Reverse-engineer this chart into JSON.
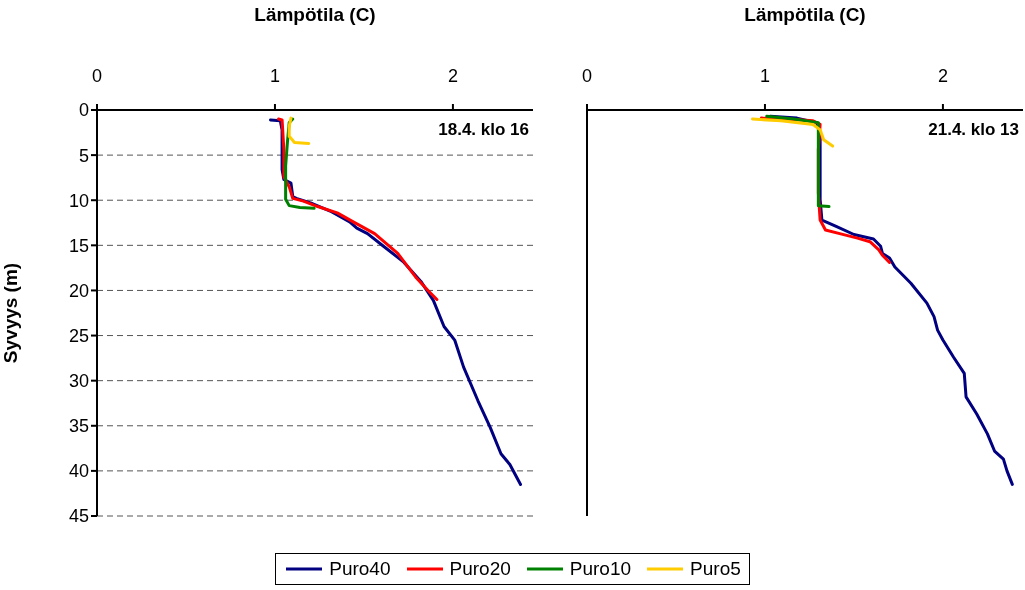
{
  "chart_data": [
    {
      "type": "line",
      "xlabel": "Lämpötila (C)",
      "ylabel": "Syvyys (m)",
      "annotations": [
        "18.4. klo 16"
      ],
      "xlim": [
        0,
        2.45
      ],
      "xticks": [
        0,
        1,
        2
      ],
      "ylim": [
        45,
        0
      ],
      "yticks": [
        0,
        5,
        10,
        15,
        20,
        25,
        30,
        35,
        40,
        45
      ],
      "grid": "y",
      "legend": "bottom",
      "marker": "none",
      "line_style": "solid",
      "series": [
        {
          "name": "Puro40",
          "color": "#000080",
          "x": [
            0.975,
            1.03,
            1.04,
            1.04,
            1.05,
            1.09,
            1.1,
            1.12,
            1.2,
            1.31,
            1.42,
            1.46,
            1.52,
            1.61,
            1.72,
            1.82,
            1.89,
            1.95,
            2.01,
            2.06,
            2.14,
            2.21,
            2.27,
            2.32,
            2.38
          ],
          "values": [
            1.1,
            1.2,
            2.2,
            6.6,
            7.7,
            8.1,
            9.6,
            9.8,
            10.3,
            11.2,
            12.4,
            13.1,
            13.7,
            15.1,
            16.8,
            19.0,
            21.1,
            24.0,
            25.5,
            28.5,
            32.2,
            35.2,
            38.1,
            39.3,
            41.5
          ]
        },
        {
          "name": "Puro20",
          "color": "#ff0000",
          "x": [
            1.02,
            1.04,
            1.05,
            1.05,
            1.08,
            1.1,
            1.16,
            1.24,
            1.35,
            1.44,
            1.56,
            1.69,
            1.79,
            1.86,
            1.91
          ],
          "values": [
            1.0,
            1.1,
            4.4,
            7.4,
            8.5,
            9.8,
            10.1,
            10.7,
            11.4,
            12.4,
            13.7,
            15.9,
            18.5,
            20.0,
            21.0
          ]
        },
        {
          "name": "Puro10",
          "color": "#008000",
          "x": [
            1.1,
            1.08,
            1.07,
            1.06,
            1.06,
            1.08,
            1.14,
            1.22
          ],
          "values": [
            1.0,
            1.4,
            3.6,
            6.2,
            9.9,
            10.6,
            10.8,
            10.9
          ]
        },
        {
          "name": "Puro5",
          "color": "#ffcc00",
          "x": [
            1.09,
            1.08,
            1.08,
            1.11,
            1.19
          ],
          "values": [
            0.9,
            1.8,
            2.9,
            3.6,
            3.7
          ]
        }
      ]
    },
    {
      "type": "line",
      "xlabel": "Lämpötila (C)",
      "annotations": [
        "21.4. klo 13"
      ],
      "xlim": [
        0,
        2.45
      ],
      "xticks": [
        0,
        1,
        2
      ],
      "ylim": [
        45,
        0
      ],
      "yticks": [
        0,
        5,
        10,
        15,
        20,
        25,
        30,
        35,
        40,
        45
      ],
      "tick_labels": "x",
      "grid": "y",
      "marker": "none",
      "line_style": "solid",
      "series": [
        {
          "color": "#000080",
          "x": [
            1.03,
            1.18,
            1.29,
            1.31,
            1.31,
            1.31,
            1.32,
            1.4,
            1.5,
            1.61,
            1.65,
            1.66,
            1.7,
            1.73,
            1.82,
            1.91,
            1.95,
            1.97,
            2.0,
            2.06,
            2.12,
            2.13,
            2.19,
            2.25,
            2.29,
            2.34,
            2.36,
            2.39
          ],
          "values": [
            0.7,
            0.9,
            1.4,
            2.5,
            6.2,
            9.9,
            12.2,
            12.9,
            13.8,
            14.3,
            15.1,
            15.9,
            16.4,
            17.4,
            19.2,
            21.4,
            22.9,
            24.4,
            25.5,
            27.4,
            29.2,
            31.8,
            33.7,
            35.9,
            37.8,
            38.7,
            40.0,
            41.5
          ]
        },
        {
          "color": "#ff0000",
          "x": [
            0.98,
            1.12,
            1.27,
            1.31,
            1.3,
            1.3,
            1.31,
            1.34,
            1.42,
            1.52,
            1.59,
            1.64,
            1.66,
            1.7
          ],
          "values": [
            0.9,
            1.0,
            1.2,
            1.6,
            4.4,
            9.2,
            12.2,
            13.3,
            13.7,
            14.2,
            14.6,
            15.5,
            16.1,
            16.9
          ]
        },
        {
          "color": "#008000",
          "x": [
            1.01,
            1.16,
            1.3,
            1.3,
            1.3,
            1.3,
            1.36
          ],
          "values": [
            0.7,
            1.0,
            1.4,
            4.4,
            9.2,
            10.6,
            10.7
          ]
        },
        {
          "color": "#ffcc00",
          "x": [
            0.93,
            1.09,
            1.27,
            1.31,
            1.33,
            1.38
          ],
          "values": [
            1.0,
            1.2,
            1.6,
            2.2,
            3.3,
            4.0
          ]
        }
      ]
    }
  ]
}
